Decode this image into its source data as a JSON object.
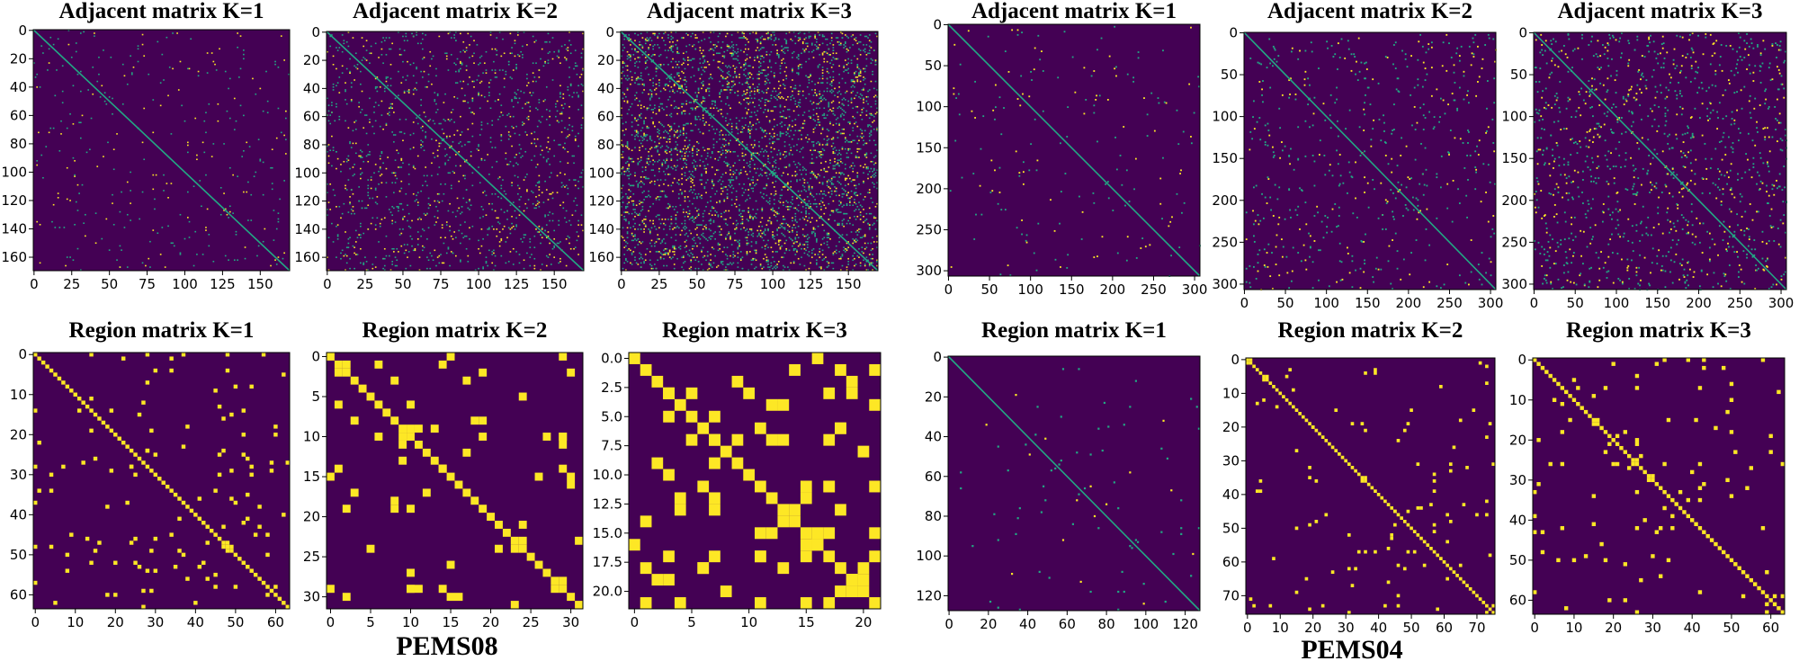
{
  "colors": {
    "background": "#440154",
    "line": "#22a884",
    "cell": "#fde725"
  },
  "datasets": [
    {
      "label": "PEMS08"
    },
    {
      "label": "PEMS04"
    }
  ],
  "chart_data": [
    {
      "type": "heatmap",
      "title": "Adjacent matrix K=1",
      "n": 170,
      "diagonal": true,
      "density": 0.012,
      "block": 1,
      "value_range": [
        0,
        1
      ],
      "xticks": [
        "0",
        "25",
        "50",
        "75",
        "100",
        "125",
        "150"
      ],
      "yticks": [
        "0",
        "20",
        "40",
        "60",
        "80",
        "100",
        "120",
        "140",
        "160"
      ]
    },
    {
      "type": "heatmap",
      "title": "Adjacent matrix K=2",
      "n": 170,
      "diagonal": true,
      "density": 0.05,
      "block": 1,
      "value_range": [
        0,
        1
      ],
      "xticks": [
        "0",
        "25",
        "50",
        "75",
        "100",
        "125",
        "150"
      ],
      "yticks": [
        "0",
        "20",
        "40",
        "60",
        "80",
        "100",
        "120",
        "140",
        "160"
      ]
    },
    {
      "type": "heatmap",
      "title": "Adjacent matrix K=3",
      "n": 170,
      "diagonal": true,
      "density": 0.13,
      "block": 1,
      "value_range": [
        0,
        1
      ],
      "xticks": [
        "0",
        "25",
        "50",
        "75",
        "100",
        "125",
        "150"
      ],
      "yticks": [
        "0",
        "20",
        "40",
        "60",
        "80",
        "100",
        "120",
        "140",
        "160"
      ]
    },
    {
      "type": "heatmap",
      "title": "Region matrix K=1",
      "n": 64,
      "diagonal": true,
      "density": 0.03,
      "block": 1,
      "value_range": [
        0,
        1
      ],
      "xticks": [
        "0",
        "10",
        "20",
        "30",
        "40",
        "50",
        "60"
      ],
      "yticks": [
        "0",
        "10",
        "20",
        "30",
        "40",
        "50",
        "60"
      ]
    },
    {
      "type": "heatmap",
      "title": "Region matrix K=2",
      "n": 32,
      "diagonal": true,
      "density": 0.06,
      "block": 1,
      "value_range": [
        0,
        1
      ],
      "xticks": [
        "0",
        "5",
        "10",
        "15",
        "20",
        "25",
        "30"
      ],
      "yticks": [
        "0",
        "5",
        "10",
        "15",
        "20",
        "25",
        "30"
      ]
    },
    {
      "type": "heatmap",
      "title": "Region matrix K=3",
      "n": 22,
      "diagonal": true,
      "density": 0.16,
      "block": 1,
      "value_range": [
        0,
        1
      ],
      "xticks": [
        "0",
        "5",
        "10",
        "15",
        "20"
      ],
      "yticks": [
        "0.0",
        "2.5",
        "5.0",
        "7.5",
        "10.0",
        "12.5",
        "15.0",
        "17.5",
        "20.0"
      ]
    },
    {
      "type": "heatmap",
      "title": "Adjacent matrix K=1",
      "n": 307,
      "diagonal": true,
      "density": 0.004,
      "block": 2,
      "value_range": [
        0,
        1
      ],
      "xticks": [
        "0",
        "50",
        "100",
        "150",
        "200",
        "250",
        "300"
      ],
      "yticks": [
        "0",
        "50",
        "100",
        "150",
        "200",
        "250",
        "300"
      ]
    },
    {
      "type": "heatmap",
      "title": "Adjacent matrix K=2",
      "n": 307,
      "diagonal": true,
      "density": 0.012,
      "block": 2,
      "value_range": [
        0,
        1
      ],
      "xticks": [
        "0",
        "50",
        "100",
        "150",
        "200",
        "250",
        "300"
      ],
      "yticks": [
        "0",
        "50",
        "100",
        "150",
        "200",
        "250",
        "300"
      ]
    },
    {
      "type": "heatmap",
      "title": "Adjacent matrix K=3",
      "n": 307,
      "diagonal": true,
      "density": 0.025,
      "block": 2,
      "value_range": [
        0,
        1
      ],
      "xticks": [
        "0",
        "50",
        "100",
        "150",
        "200",
        "250",
        "300"
      ],
      "yticks": [
        "0",
        "50",
        "100",
        "150",
        "200",
        "250",
        "300"
      ]
    },
    {
      "type": "heatmap",
      "title": "Region matrix K=1",
      "n": 128,
      "diagonal": true,
      "density": 0.005,
      "block": 1,
      "value_range": [
        0,
        1
      ],
      "xticks": [
        "0",
        "20",
        "40",
        "60",
        "80",
        "100",
        "120"
      ],
      "yticks": [
        "0",
        "20",
        "40",
        "60",
        "80",
        "100",
        "120"
      ]
    },
    {
      "type": "heatmap",
      "title": "Region matrix K=2",
      "n": 76,
      "diagonal": true,
      "density": 0.018,
      "block": 1,
      "value_range": [
        0,
        1
      ],
      "xticks": [
        "0",
        "10",
        "20",
        "30",
        "40",
        "50",
        "60",
        "70"
      ],
      "yticks": [
        "0",
        "10",
        "20",
        "30",
        "40",
        "50",
        "60",
        "70"
      ]
    },
    {
      "type": "heatmap",
      "title": "Region matrix K=3",
      "n": 64,
      "diagonal": true,
      "density": 0.025,
      "block": 1,
      "value_range": [
        0,
        1
      ],
      "xticks": [
        "0",
        "10",
        "20",
        "30",
        "40",
        "50",
        "60"
      ],
      "yticks": [
        "0",
        "10",
        "20",
        "30",
        "40",
        "50",
        "60"
      ]
    }
  ]
}
